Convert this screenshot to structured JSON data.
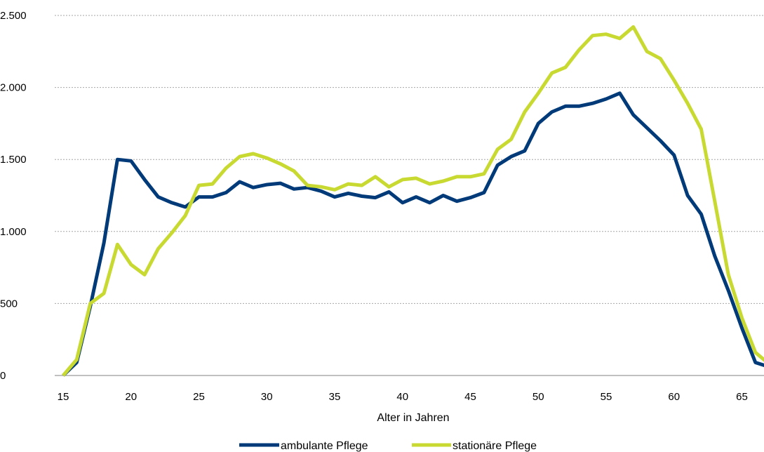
{
  "chart_data": {
    "type": "line",
    "title": "",
    "xlabel": "Alter in Jahren",
    "ylabel": "",
    "xlim": [
      15,
      67
    ],
    "ylim": [
      0,
      2500
    ],
    "grid": true,
    "legend_position": "bottom",
    "x_ticks": [
      15,
      20,
      25,
      30,
      35,
      40,
      45,
      50,
      55,
      60,
      65
    ],
    "x_tick_labels": [
      "15",
      "20",
      "25",
      "30",
      "35",
      "40",
      "45",
      "50",
      "55",
      "60",
      "65"
    ],
    "y_ticks": [
      0,
      500,
      1000,
      1500,
      2000,
      2500
    ],
    "y_tick_labels": [
      "0",
      "500",
      "1.000",
      "1.500",
      "2.000",
      "2.500"
    ],
    "x": [
      15,
      16,
      17,
      18,
      19,
      20,
      21,
      22,
      23,
      24,
      25,
      26,
      27,
      28,
      29,
      30,
      31,
      32,
      33,
      34,
      35,
      36,
      37,
      38,
      39,
      40,
      41,
      42,
      43,
      44,
      45,
      46,
      47,
      48,
      49,
      50,
      51,
      52,
      53,
      54,
      55,
      56,
      57,
      58,
      59,
      60,
      61,
      62,
      63,
      64,
      65,
      66,
      67
    ],
    "series": [
      {
        "name": "ambulante Pflege",
        "color": "#003a78",
        "values": [
          0,
          90,
          480,
          920,
          1500,
          1490,
          1360,
          1240,
          1200,
          1170,
          1240,
          1240,
          1270,
          1345,
          1305,
          1325,
          1335,
          1295,
          1305,
          1280,
          1240,
          1265,
          1245,
          1235,
          1275,
          1200,
          1240,
          1200,
          1250,
          1210,
          1235,
          1270,
          1460,
          1520,
          1560,
          1750,
          1830,
          1870,
          1870,
          1890,
          1920,
          1960,
          1810,
          1720,
          1630,
          1530,
          1250,
          1120,
          830,
          590,
          330,
          90,
          60
        ]
      },
      {
        "name": "stationäre Pflege",
        "color": "#c8d932",
        "values": [
          0,
          110,
          500,
          570,
          910,
          770,
          700,
          880,
          990,
          1110,
          1320,
          1330,
          1440,
          1520,
          1540,
          1510,
          1470,
          1420,
          1320,
          1310,
          1290,
          1330,
          1320,
          1380,
          1310,
          1360,
          1370,
          1330,
          1350,
          1380,
          1380,
          1400,
          1570,
          1640,
          1830,
          1960,
          2100,
          2140,
          2260,
          2360,
          2370,
          2340,
          2420,
          2250,
          2200,
          2050,
          1890,
          1710,
          1210,
          700,
          400,
          160,
          80
        ]
      }
    ]
  }
}
